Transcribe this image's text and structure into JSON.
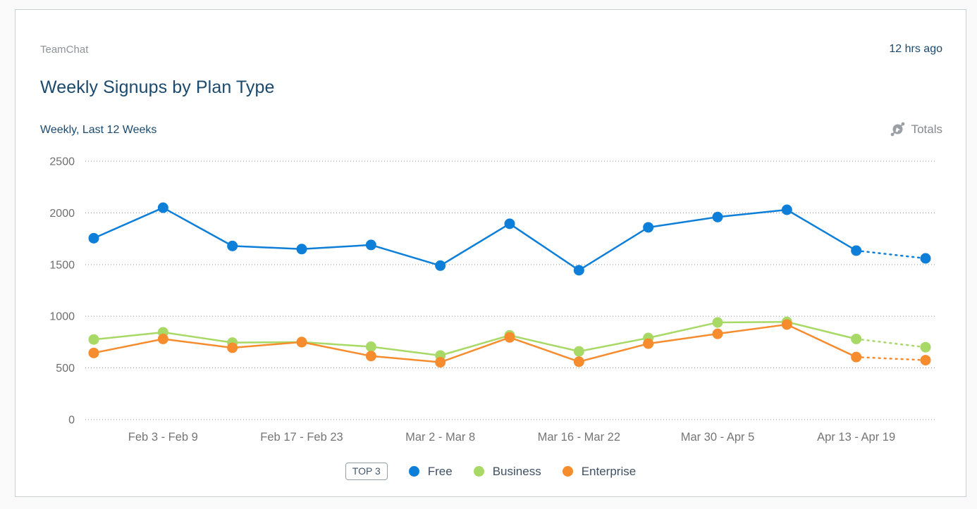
{
  "header": {
    "app_name": "TeamChat",
    "updated": "12 hrs ago",
    "title": "Weekly Signups by Plan Type",
    "subtitle": "Weekly, Last 12 Weeks",
    "totals_label": "Totals"
  },
  "legend": {
    "badge": "TOP 3"
  },
  "colors": {
    "free": "#0e7fd8",
    "business": "#a8d966",
    "enterprise": "#f78c2e",
    "title_text": "#1b4a6e",
    "axis_text": "#6e6e6e",
    "gridline": "#a7a7a7",
    "card_border": "#c8cfd6"
  },
  "chart_data": {
    "type": "line",
    "title": "Weekly Signups by Plan Type",
    "subtitle": "Weekly, Last 12 Weeks",
    "xlabel": "",
    "ylabel": "",
    "ylim": [
      0,
      2500
    ],
    "y_ticks": [
      0,
      500,
      1000,
      1500,
      2000,
      2500
    ],
    "grid": "dotted-horizontal",
    "legend_position": "bottom-center",
    "num_points": 13,
    "last_segment_dotted": true,
    "x_tick_labels": [
      {
        "index": 1,
        "label": "Feb 3 - Feb 9"
      },
      {
        "index": 3,
        "label": "Feb 17 - Feb 23"
      },
      {
        "index": 5,
        "label": "Mar 2 - Mar 8"
      },
      {
        "index": 7,
        "label": "Mar 16 - Mar 22"
      },
      {
        "index": 9,
        "label": "Mar 30 - Apr 5"
      },
      {
        "index": 11,
        "label": "Apr 13 - Apr 19"
      }
    ],
    "series": [
      {
        "name": "Free",
        "color": "#0e7fd8",
        "values": [
          1755,
          2050,
          1680,
          1650,
          1690,
          1490,
          1895,
          1445,
          1860,
          1960,
          2030,
          1635,
          1560
        ]
      },
      {
        "name": "Business",
        "color": "#a8d966",
        "values": [
          775,
          845,
          745,
          750,
          705,
          620,
          815,
          660,
          790,
          940,
          945,
          780,
          700
        ]
      },
      {
        "name": "Enterprise",
        "color": "#f78c2e",
        "values": [
          645,
          780,
          695,
          750,
          615,
          555,
          795,
          560,
          735,
          830,
          920,
          605,
          575
        ]
      }
    ]
  }
}
